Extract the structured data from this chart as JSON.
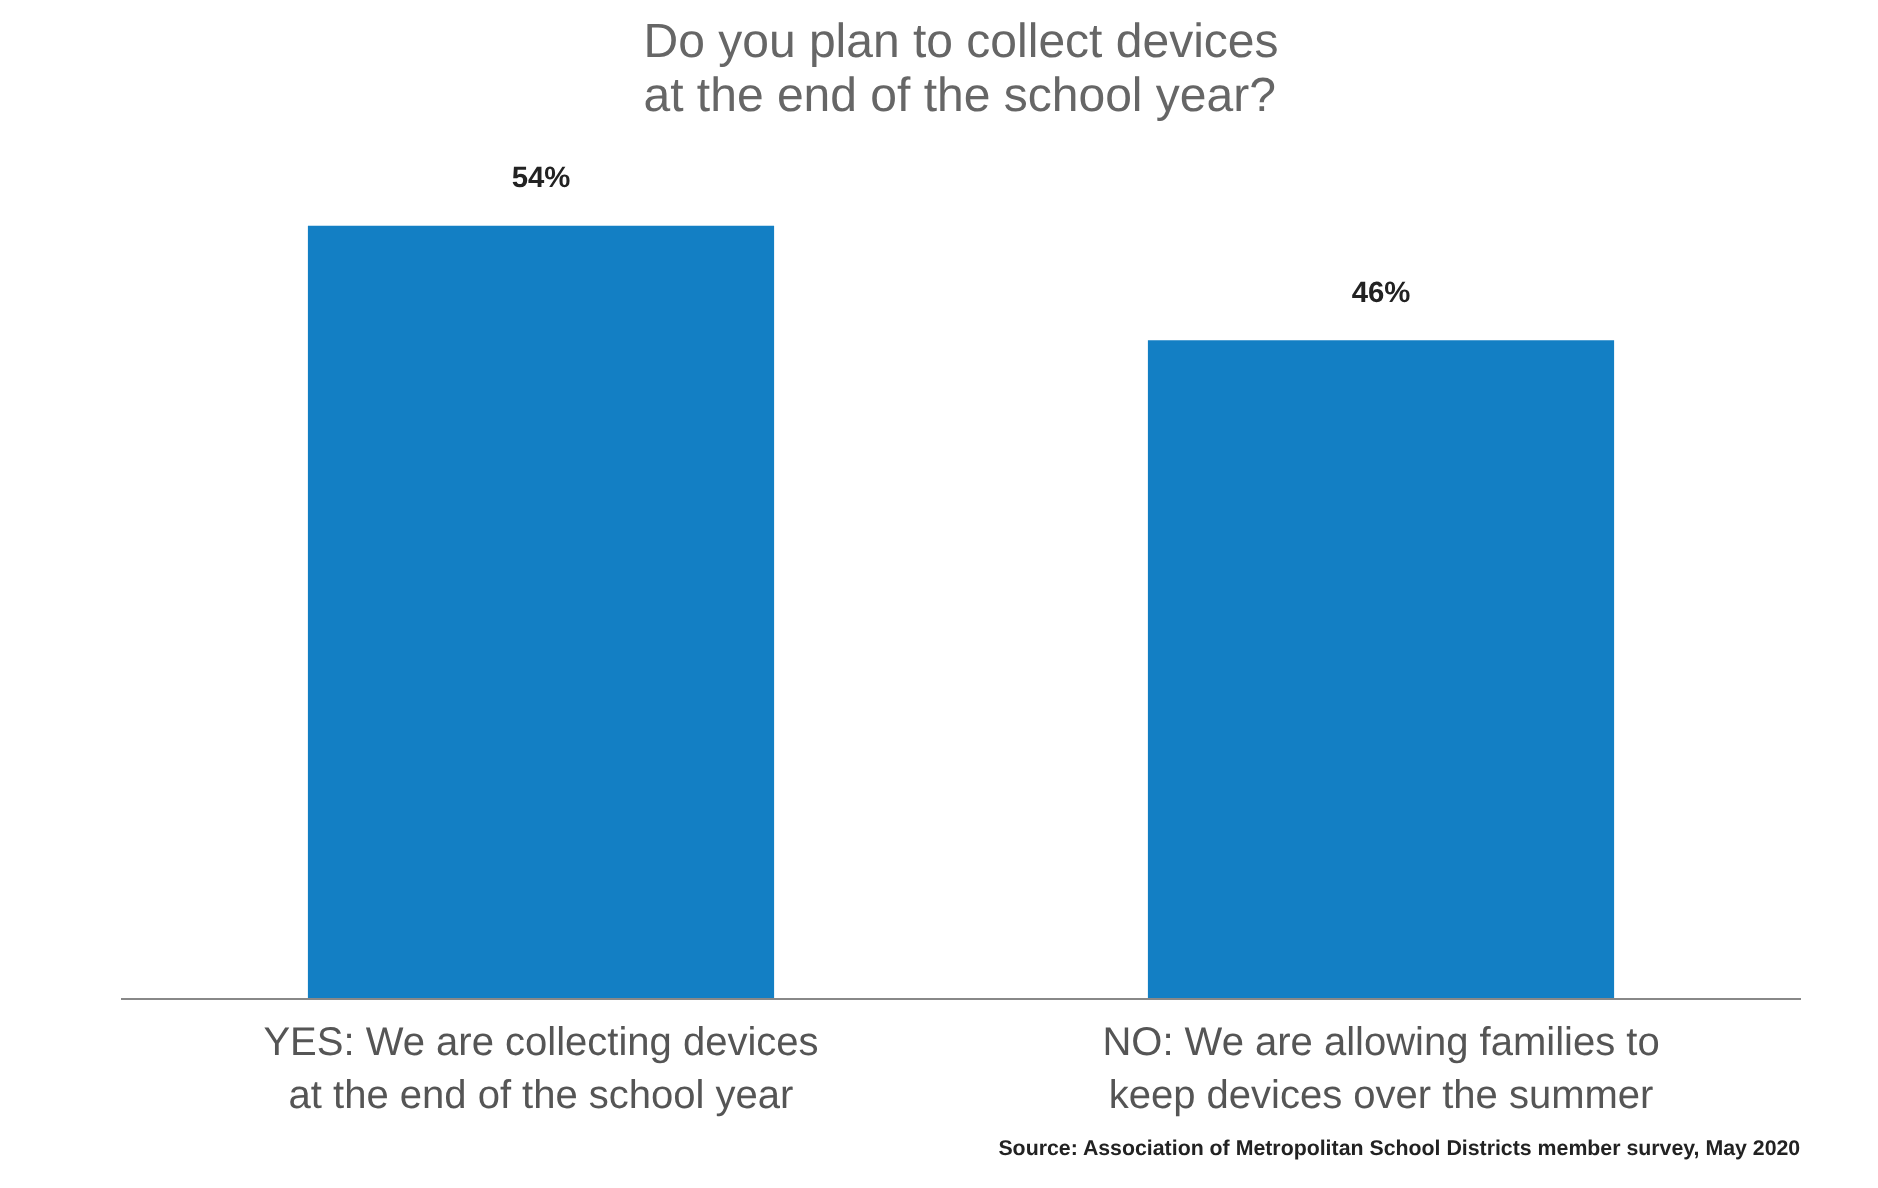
{
  "chart_data": {
    "type": "bar",
    "title": "Do you plan to collect devices at the end of the school year?",
    "categories": [
      "YES: We are collecting devices at the end of the school year",
      "NO: We are allowing families to keep devices over the summer"
    ],
    "values": [
      54,
      46
    ],
    "value_labels": [
      "54%",
      "46%"
    ],
    "color": "#137fc4",
    "tick_labels": "x",
    "annotations": [
      "Source: Association of Metropolitan School Districts member survey, May 2020"
    ]
  }
}
